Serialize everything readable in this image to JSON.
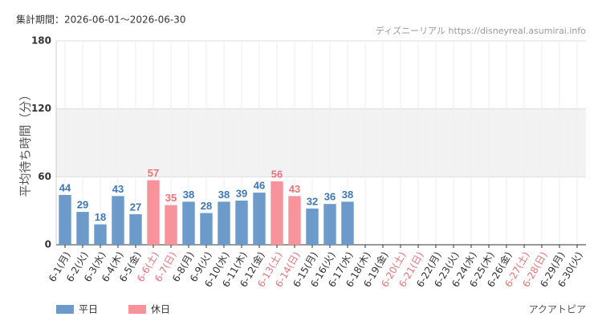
{
  "chart_data": {
    "type": "bar",
    "period": "集計期間：2026-06-01～2026-06-30",
    "source": "ディズニーリアル https://disneyreal.asumirai.info",
    "y_label": "平均待ち時間（分）",
    "attraction": "アクアトピア",
    "categories": [
      "6-1(月)",
      "6-2(火)",
      "6-3(水)",
      "6-4(木)",
      "6-5(金)",
      "6-6(土)",
      "6-7(日)",
      "6-8(月)",
      "6-9(火)",
      "6-10(水)",
      "6-11(木)",
      "6-12(金)",
      "6-13(土)",
      "6-14(日)",
      "6-15(月)",
      "6-16(火)",
      "6-17(水)",
      "6-18(木)",
      "6-19(金)",
      "6-20(土)",
      "6-21(日)",
      "6-22(月)",
      "6-23(火)",
      "6-24(水)",
      "6-25(木)",
      "6-26(金)",
      "6-27(土)",
      "6-28(日)",
      "6-29(月)",
      "6-30(火)"
    ],
    "category_colors": [
      "#333",
      "#333",
      "#333",
      "#333",
      "#333",
      "#e8737b",
      "#e8737b",
      "#333",
      "#333",
      "#333",
      "#333",
      "#333",
      "#e8737b",
      "#e8737b",
      "#333",
      "#333",
      "#333",
      "#333",
      "#333",
      "#e8737b",
      "#e8737b",
      "#333",
      "#333",
      "#333",
      "#333",
      "#333",
      "#e8737b",
      "#e8737b",
      "#333",
      "#333"
    ],
    "series": [
      {
        "name": "平日",
        "color": "#6b9acb",
        "label_color": "#3f77b0",
        "values": [
          44,
          29,
          18,
          43,
          27,
          null,
          null,
          38,
          28,
          38,
          39,
          46,
          null,
          null,
          32,
          36,
          38,
          null,
          null,
          null,
          null,
          null,
          null,
          null,
          null,
          null,
          null,
          null,
          null,
          null
        ]
      },
      {
        "name": "休日",
        "color": "#f7949b",
        "label_color": "#e8737b",
        "values": [
          null,
          null,
          null,
          null,
          null,
          57,
          35,
          null,
          null,
          null,
          null,
          null,
          56,
          43,
          null,
          null,
          null,
          null,
          null,
          null,
          null,
          null,
          null,
          null,
          null,
          null,
          null,
          null,
          null,
          null
        ]
      }
    ],
    "ylim": [
      0,
      180
    ],
    "yticks": [
      0,
      60,
      120,
      180
    ],
    "shaded_range": [
      60,
      120
    ],
    "grid": true
  }
}
